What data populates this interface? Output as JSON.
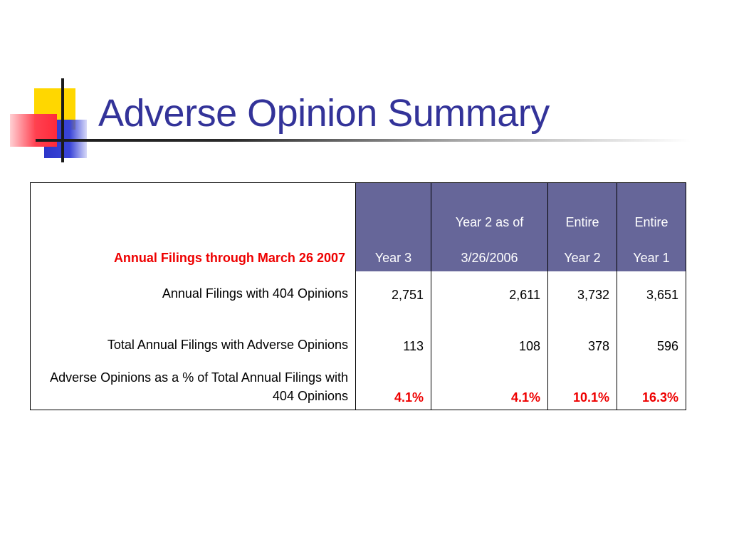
{
  "slide": {
    "title": "Adverse Opinion Summary"
  },
  "table": {
    "header_label": "Annual Filings through March 26 2007",
    "columns": [
      {
        "top": "",
        "bottom": "Year 3"
      },
      {
        "top": "Year 2 as of",
        "bottom": "3/26/2006"
      },
      {
        "top": "Entire",
        "bottom": "Year 2"
      },
      {
        "top": "Entire",
        "bottom": "Year 1"
      }
    ],
    "rows": [
      {
        "label": "Annual Filings with 404 Opinions",
        "values": [
          "2,751",
          "2,611",
          "3,732",
          "3,651"
        ]
      },
      {
        "label": "Total  Annual Filings with Adverse Opinions",
        "values": [
          "113",
          "108",
          "378",
          "596"
        ]
      },
      {
        "label": "Adverse Opinions as a % of Total  Annual Filings with 404 Opinions",
        "values": [
          "4.1%",
          "4.1%",
          "10.1%",
          "16.3%"
        ]
      }
    ]
  },
  "colors": {
    "title": "#333399",
    "header_fill": "#666699",
    "highlight": "#ee0000"
  }
}
